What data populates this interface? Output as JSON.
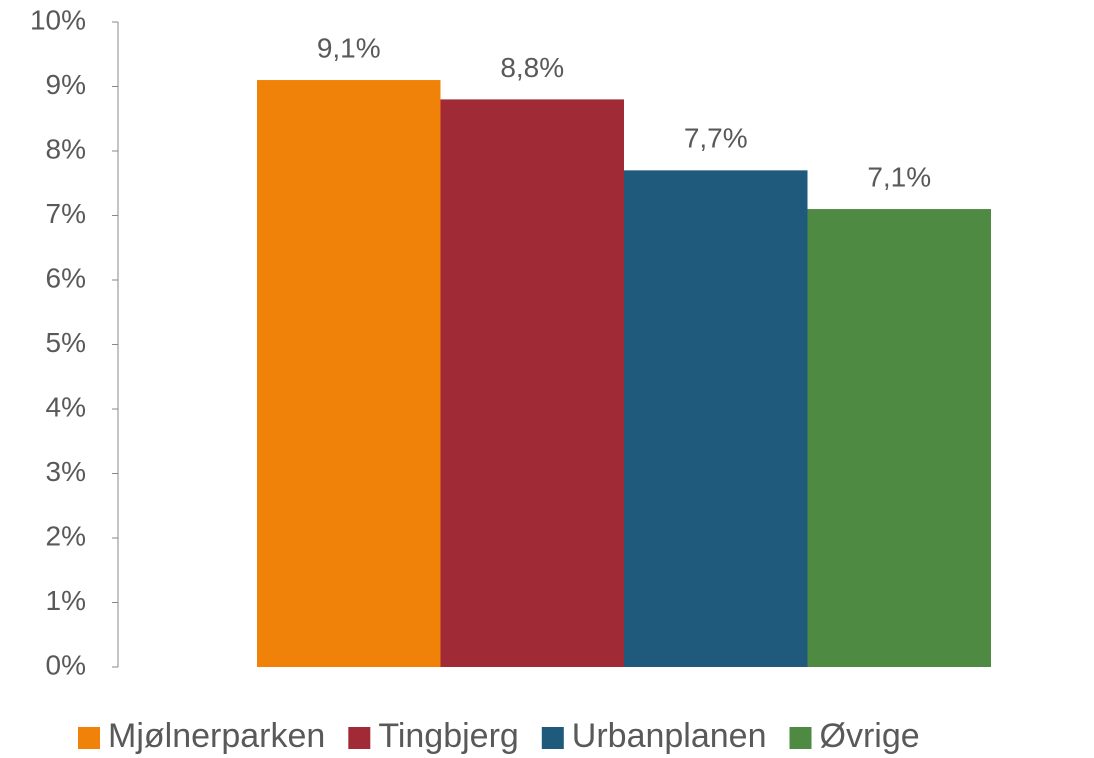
{
  "chart_data": {
    "type": "bar",
    "categories": [
      null
    ],
    "series": [
      {
        "name": "Mjølnerparken",
        "color": "#f0820a",
        "values": [
          9.1
        ],
        "value_labels": [
          "9,1%"
        ]
      },
      {
        "name": "Tingbjerg",
        "color": "#a12a37",
        "values": [
          8.8
        ],
        "value_labels": [
          "8,8%"
        ]
      },
      {
        "name": "Urbanplanen",
        "color": "#1f5a7d",
        "values": [
          7.7
        ],
        "value_labels": [
          "7,7%"
        ]
      },
      {
        "name": "Øvrige",
        "color": "#4e8a42",
        "values": [
          7.1
        ],
        "value_labels": [
          "7,1%"
        ]
      }
    ],
    "ylim": [
      0,
      10
    ],
    "yticks": [
      {
        "value": 0,
        "label": "0%"
      },
      {
        "value": 1,
        "label": "1%"
      },
      {
        "value": 2,
        "label": "2%"
      },
      {
        "value": 3,
        "label": "3%"
      },
      {
        "value": 4,
        "label": "4%"
      },
      {
        "value": 5,
        "label": "5%"
      },
      {
        "value": 6,
        "label": "6%"
      },
      {
        "value": 7,
        "label": "7%"
      },
      {
        "value": 8,
        "label": "8%"
      },
      {
        "value": 9,
        "label": "9%"
      },
      {
        "value": 10,
        "label": "10%"
      }
    ],
    "grid": false,
    "legend": "bottom"
  }
}
